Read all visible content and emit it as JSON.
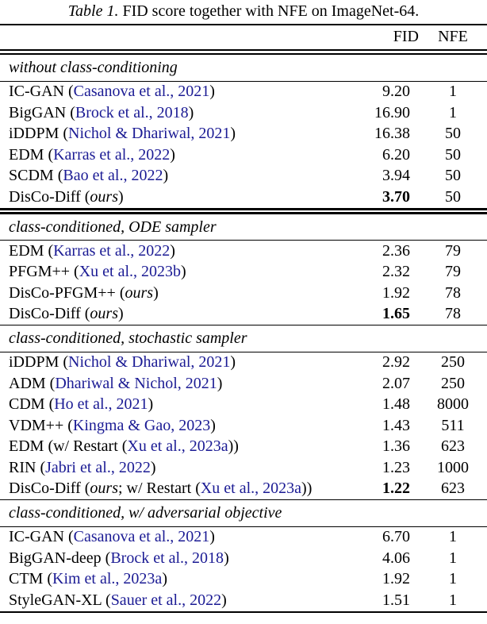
{
  "title": {
    "label": "Table 1.",
    "caption": " FID score together with NFE on ImageNet-64."
  },
  "header": {
    "fid": "FID",
    "nfe": "NFE"
  },
  "colors": {
    "citation_blue": "#1b1b94",
    "text": "#000000",
    "rule": "#000000",
    "background": "#ffffff"
  },
  "sections": [
    {
      "label": "without class-conditioning",
      "end_rule": "double",
      "rows": [
        {
          "pre": "IC-GAN (",
          "cite": "Casanova et al., 2021",
          "post": ")",
          "fid": "9.20",
          "nfe": "1"
        },
        {
          "pre": "BigGAN (",
          "cite": "Brock et al., 2018",
          "post": ")",
          "fid": "16.90",
          "nfe": "1"
        },
        {
          "pre": "iDDPM (",
          "cite": "Nichol & Dhariwal, 2021",
          "post": ")",
          "fid": "16.38",
          "nfe": "50"
        },
        {
          "pre": "EDM (",
          "cite": "Karras et al., 2022",
          "post": ")",
          "fid": "6.20",
          "nfe": "50"
        },
        {
          "pre": "SCDM (",
          "cite": "Bao et al., 2022",
          "post": ")",
          "fid": "3.94",
          "nfe": "50"
        },
        {
          "pre": "DisCo-Diff (",
          "italic": "ours",
          "post": ")",
          "fid": "3.70",
          "fid_bold": true,
          "nfe": "50"
        }
      ]
    },
    {
      "label": "class-conditioned, ODE sampler",
      "end_rule": "single",
      "rows": [
        {
          "pre": "EDM (",
          "cite": "Karras et al., 2022",
          "post": ")",
          "fid": "2.36",
          "nfe": "79"
        },
        {
          "pre": "PFGM++ (",
          "cite": "Xu et al., 2023b",
          "post": ")",
          "fid": "2.32",
          "nfe": "79"
        },
        {
          "pre": "DisCo-PFGM++ (",
          "italic": "ours",
          "post": ")",
          "fid": "1.92",
          "nfe": "78"
        },
        {
          "pre": "DisCo-Diff (",
          "italic": "ours",
          "post": ")",
          "fid": "1.65",
          "fid_bold": true,
          "nfe": "78"
        }
      ]
    },
    {
      "label": "class-conditioned, stochastic sampler",
      "end_rule": "single",
      "rows": [
        {
          "pre": "iDDPM (",
          "cite": "Nichol & Dhariwal, 2021",
          "post": ")",
          "fid": "2.92",
          "nfe": "250"
        },
        {
          "pre": "ADM (",
          "cite": "Dhariwal & Nichol, 2021",
          "post": ")",
          "fid": "2.07",
          "nfe": "250"
        },
        {
          "pre": "CDM (",
          "cite": "Ho et al., 2021",
          "post": ")",
          "fid": "1.48",
          "nfe": "8000"
        },
        {
          "pre": "VDM++ (",
          "cite": "Kingma & Gao, 2023",
          "post": ")",
          "fid": "1.43",
          "nfe": "511"
        },
        {
          "pre": "EDM (w/ Restart (",
          "cite": "Xu et al., 2023a",
          "post": "))",
          "fid": "1.36",
          "nfe": "623"
        },
        {
          "pre": "RIN (",
          "cite": "Jabri et al., 2022",
          "post": ")",
          "fid": "1.23",
          "nfe": "1000"
        },
        {
          "pre": "DisCo-Diff (",
          "italic": "ours",
          "mid": "; w/ Restart (",
          "cite": "Xu et al., 2023a",
          "post": "))",
          "fid": "1.22",
          "fid_bold": true,
          "nfe": "623"
        }
      ]
    },
    {
      "label": "class-conditioned, w/ adversarial objective",
      "end_rule": "bottom",
      "rows": [
        {
          "pre": "IC-GAN (",
          "cite": "Casanova et al., 2021",
          "post": ")",
          "fid": "6.70",
          "nfe": "1"
        },
        {
          "pre": "BigGAN-deep (",
          "cite": "Brock et al., 2018",
          "post": ")",
          "fid": "4.06",
          "nfe": "1"
        },
        {
          "pre": "CTM (",
          "cite": "Kim et al., 2023a",
          "post": ")",
          "fid": "1.92",
          "nfe": "1"
        },
        {
          "pre": "StyleGAN-XL (",
          "cite": "Sauer et al., 2022",
          "post": ")",
          "fid": "1.51",
          "nfe": "1"
        }
      ]
    }
  ]
}
